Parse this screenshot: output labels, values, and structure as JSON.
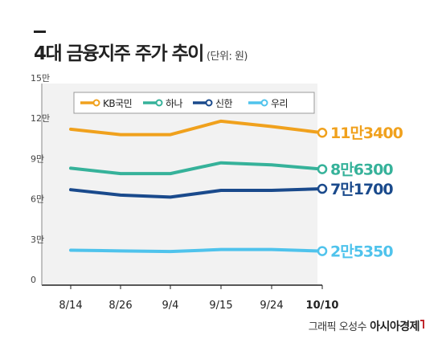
{
  "title": "4대 금융지주 주가 추이",
  "unit_note": "(단위: 원)",
  "credit": "그래픽 오성수",
  "brand": "아시아경제",
  "colors": {
    "KB국민": "#f0a11d",
    "하나": "#36b29a",
    "신한": "#1a4a8c",
    "우리": "#4fc3ec",
    "plot_bg": "#f2f2f2",
    "axis": "#222222"
  },
  "chart_data": {
    "type": "line",
    "title": "4대 금융지주 주가 추이",
    "ylabel": "(단위: 원)",
    "categories": [
      "8/14",
      "8/26",
      "9/4",
      "9/15",
      "9/24",
      "10/10"
    ],
    "y_ticks": [
      {
        "value": 0,
        "label": "0"
      },
      {
        "value": 30000,
        "label": "3만"
      },
      {
        "value": 60000,
        "label": "6만"
      },
      {
        "value": 90000,
        "label": "9만"
      },
      {
        "value": 120000,
        "label": "12만"
      },
      {
        "value": 150000,
        "label": "15만"
      }
    ],
    "ylim": [
      0,
      150000
    ],
    "legend_position": "top",
    "grid": false,
    "series": [
      {
        "name": "KB국민",
        "values": [
          116000,
          112000,
          112000,
          122000,
          118000,
          113400
        ],
        "end_label": "11만3400"
      },
      {
        "name": "하나",
        "values": [
          87000,
          83000,
          83000,
          91000,
          89500,
          86300
        ],
        "end_label": "8만6300"
      },
      {
        "name": "신한",
        "values": [
          71000,
          67000,
          65500,
          70500,
          70500,
          71700
        ],
        "end_label": "7만1700"
      },
      {
        "name": "우리",
        "values": [
          26000,
          25500,
          25000,
          26500,
          26500,
          25350
        ],
        "end_label": "2만5350"
      }
    ]
  }
}
